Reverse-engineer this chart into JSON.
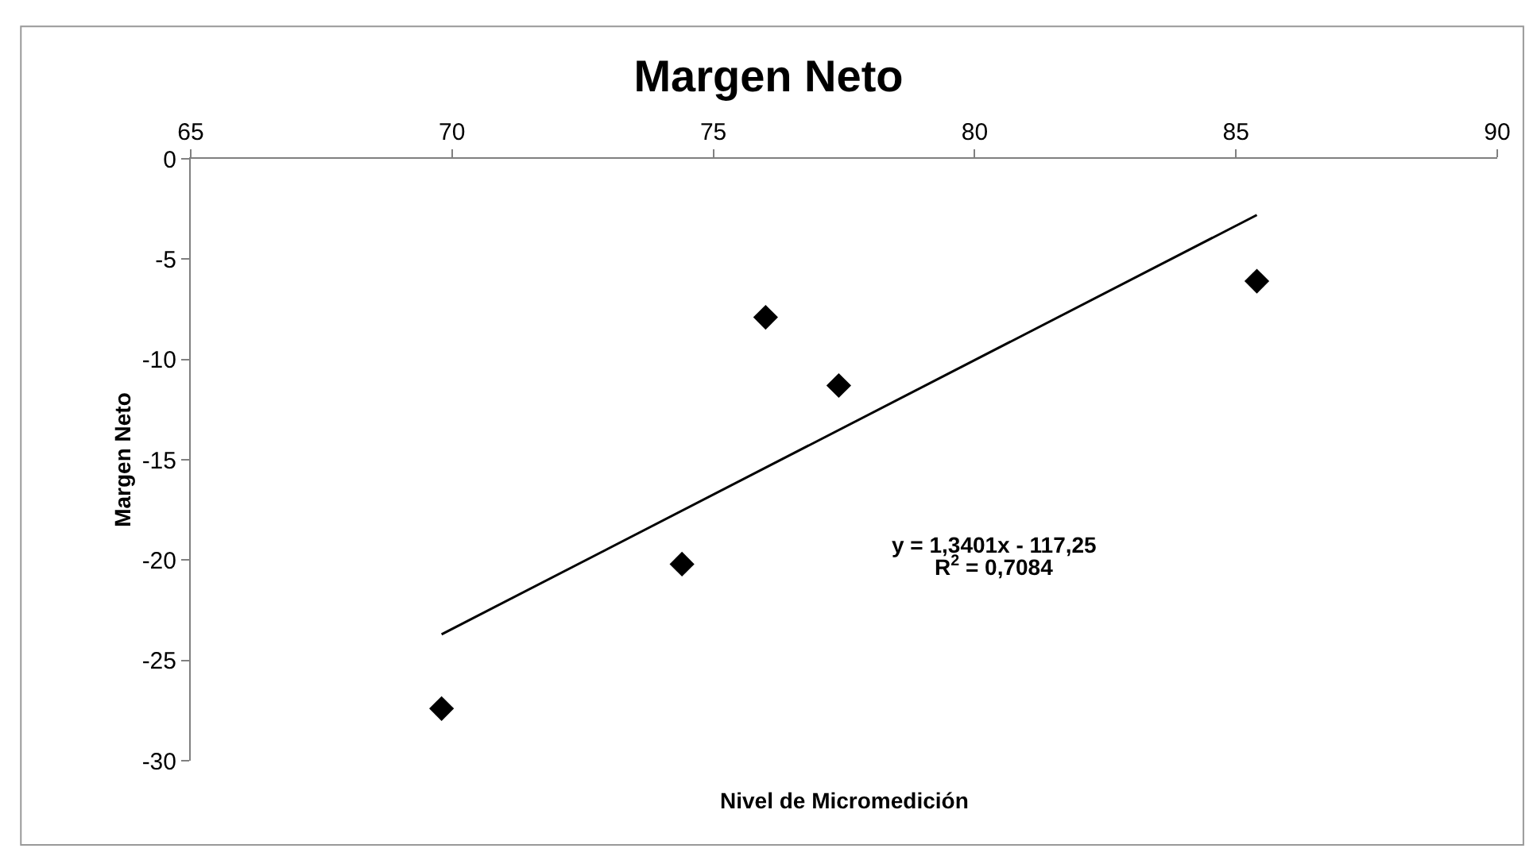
{
  "chart_data": {
    "type": "scatter",
    "title": "Margen Neto",
    "xlabel": "Nivel de Micromedición",
    "ylabel": "Margen Neto",
    "xlim": [
      65,
      90
    ],
    "xticks": [
      65,
      70,
      75,
      80,
      85,
      90
    ],
    "ylim": [
      -30,
      0
    ],
    "yticks": [
      -30,
      -25,
      -20,
      -15,
      -10,
      -5,
      0
    ],
    "marker": "diamond",
    "grid": false,
    "legend": false,
    "series": [
      {
        "color": "#000000",
        "x": [
          69.8,
          74.4,
          76.0,
          77.4,
          85.4
        ],
        "values": [
          -27.4,
          -20.2,
          -7.9,
          -11.3,
          -6.1
        ]
      },
      {
        "type": "line",
        "marker": "none",
        "color": "#000000",
        "x": [
          69.8,
          85.4
        ],
        "values": [
          -23.7,
          -2.8
        ]
      }
    ],
    "annotations": [
      "y = 1,3401x - 117,25",
      "R$^{2}$ = 0,7084"
    ]
  }
}
